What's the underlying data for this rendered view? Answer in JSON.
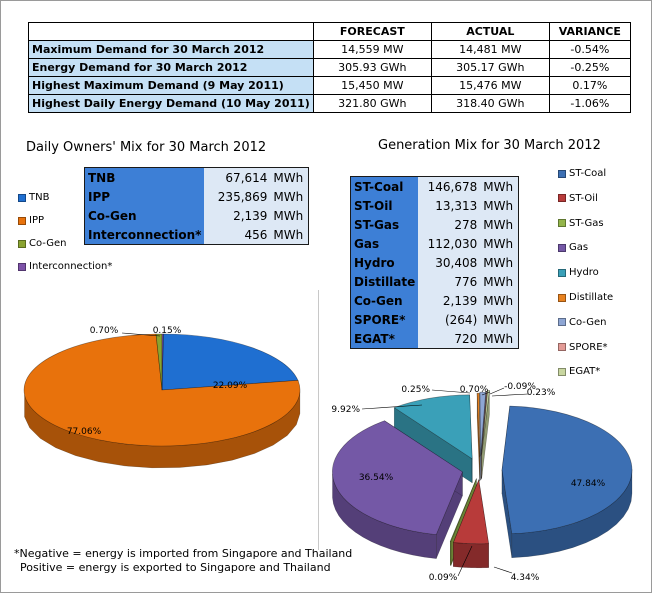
{
  "summary_table": {
    "headers": [
      "FORECAST",
      "ACTUAL",
      "VARIANCE"
    ],
    "rows": [
      {
        "label": "Maximum Demand for 30 March 2012",
        "forecast": "14,559  MW",
        "actual": "14,481  MW",
        "variance": "-0.54%"
      },
      {
        "label": "Energy Demand for 30 March 2012",
        "forecast": "305.93  GWh",
        "actual": "305.17  GWh",
        "variance": "-0.25%"
      },
      {
        "label": "Highest Maximum Demand (9 May 2011)",
        "forecast": "15,450  MW",
        "actual": "15,476  MW",
        "variance": "0.17%"
      },
      {
        "label": "Highest Daily Energy Demand (10 May 2011)",
        "forecast": "321.80  GWh",
        "actual": "318.40  GWh",
        "variance": "-1.06%"
      }
    ]
  },
  "owners_mix": {
    "table": [
      {
        "name": "TNB",
        "value": "67,614",
        "unit": "MWh"
      },
      {
        "name": "IPP",
        "value": "235,869",
        "unit": "MWh"
      },
      {
        "name": "Co-Gen",
        "value": "2,139",
        "unit": "MWh"
      },
      {
        "name": "Interconnection*",
        "value": "456",
        "unit": "MWh"
      }
    ]
  },
  "generation_mix": {
    "table": [
      {
        "name": "ST-Coal",
        "value": "146,678",
        "unit": "MWh"
      },
      {
        "name": "ST-Oil",
        "value": "13,313",
        "unit": "MWh"
      },
      {
        "name": "ST-Gas",
        "value": "278",
        "unit": "MWh"
      },
      {
        "name": "Gas",
        "value": "112,030",
        "unit": "MWh"
      },
      {
        "name": "Hydro",
        "value": "30,408",
        "unit": "MWh"
      },
      {
        "name": "Distillate",
        "value": "776",
        "unit": "MWh"
      },
      {
        "name": "Co-Gen",
        "value": "2,139",
        "unit": "MWh"
      },
      {
        "name": "SPORE*",
        "value": "(264)",
        "unit": "MWh"
      },
      {
        "name": "EGAT*",
        "value": "720",
        "unit": "MWh"
      }
    ]
  },
  "footnote": {
    "line1": "*Negative = energy is imported from Singapore and Thailand",
    "line2": "Positive = energy is exported to Singapore and Thailand"
  },
  "chart_data": [
    {
      "type": "pie",
      "title": "Daily Owners' Mix for 30 March 2012",
      "categories": [
        "TNB",
        "IPP",
        "Co-Gen",
        "Interconnection*"
      ],
      "values": [
        22.09,
        77.06,
        0.7,
        0.15
      ],
      "labels": [
        "22.09%",
        "77.06%",
        "0.70%",
        "0.15%"
      ],
      "colors": [
        "#1f6fd1",
        "#e8720c",
        "#8aa330",
        "#7d52a8"
      ],
      "legend": "left"
    },
    {
      "type": "pie",
      "title": "Generation Mix for 30 March 2012",
      "categories": [
        "ST-Coal",
        "ST-Oil",
        "ST-Gas",
        "Gas",
        "Hydro",
        "Distillate",
        "Co-Gen",
        "SPORE*",
        "EGAT*"
      ],
      "values": [
        47.84,
        4.34,
        0.09,
        36.54,
        9.92,
        0.25,
        0.7,
        -0.09,
        0.23
      ],
      "labels": [
        "47.84%",
        "4.34%",
        "0.09%",
        "36.54%",
        "9.92%",
        "0.25%",
        "0.70%",
        "-0.09%",
        "0.23%"
      ],
      "colors": [
        "#3c6fb3",
        "#b83b3a",
        "#93b54a",
        "#7458a6",
        "#3aa0b8",
        "#e8821f",
        "#8ea6d4",
        "#e39b96",
        "#c8d6a0"
      ],
      "legend": "right"
    }
  ]
}
